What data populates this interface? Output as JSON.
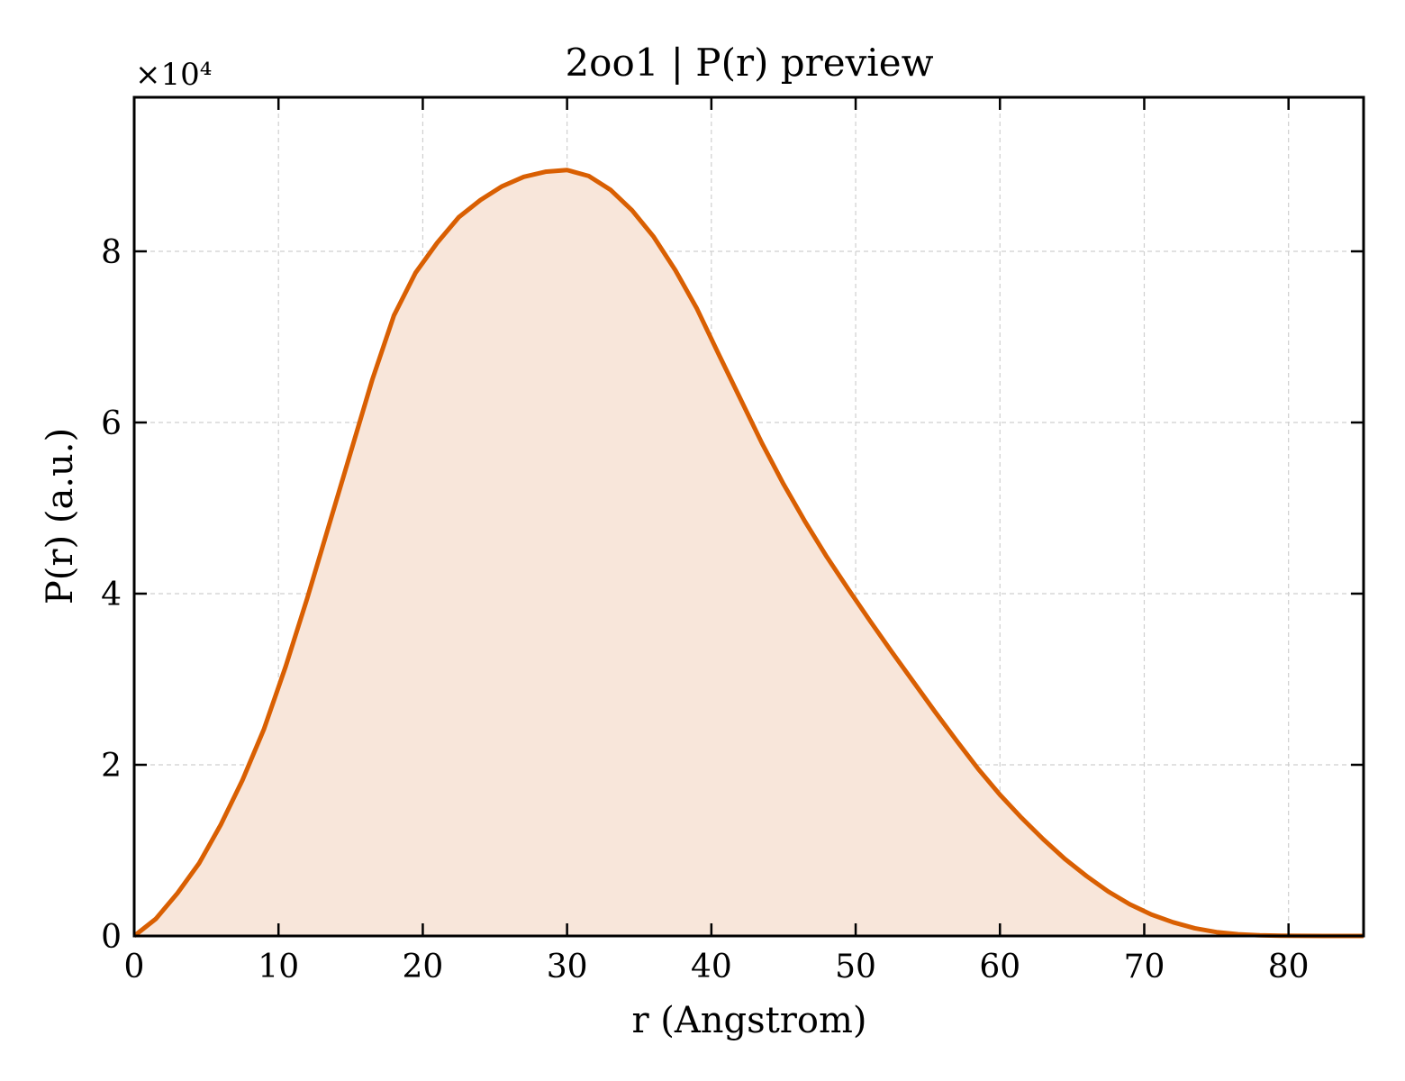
{
  "chart_data": {
    "type": "area",
    "title": "2oo1 | P(r) preview",
    "xlabel": "r (Angstrom)",
    "ylabel": "P(r) (a.u.)",
    "y_multiplier": "×10⁴",
    "xlim": [
      0,
      85.2
    ],
    "ylim": [
      0,
      9.8
    ],
    "xticks": [
      0,
      10,
      20,
      30,
      40,
      50,
      60,
      70,
      80
    ],
    "yticks": [
      0,
      2,
      4,
      6,
      8
    ],
    "grid": true,
    "line_color": "#d95f02",
    "fill_color": "#f8e6da",
    "series": [
      {
        "x": [
          0,
          1.5,
          3,
          4.5,
          6,
          7.5,
          9,
          10.5,
          12,
          13.5,
          15,
          16.5,
          18,
          19.5,
          21,
          22.5,
          24,
          25.5,
          27,
          28.5,
          30,
          31.5,
          33,
          34.5,
          36,
          37.5,
          39,
          40.5,
          42,
          43.5,
          45,
          46.5,
          48,
          49.5,
          51,
          52.5,
          54,
          55.5,
          57,
          58.5,
          60,
          61.5,
          63,
          64.5,
          66,
          67.5,
          69,
          70.5,
          72,
          73.5,
          75,
          76.5,
          78,
          79.5,
          81,
          82.5,
          84,
          85.2
        ],
        "y": [
          0.0,
          0.2,
          0.5,
          0.85,
          1.3,
          1.82,
          2.42,
          3.15,
          3.95,
          4.8,
          5.65,
          6.5,
          7.25,
          7.75,
          8.1,
          8.4,
          8.6,
          8.76,
          8.87,
          8.93,
          8.95,
          8.88,
          8.72,
          8.48,
          8.17,
          7.78,
          7.33,
          6.8,
          6.28,
          5.76,
          5.28,
          4.84,
          4.43,
          4.05,
          3.68,
          3.32,
          2.97,
          2.62,
          2.28,
          1.95,
          1.65,
          1.38,
          1.13,
          0.9,
          0.7,
          0.52,
          0.37,
          0.25,
          0.16,
          0.09,
          0.045,
          0.02,
          0.008,
          0.003,
          0.001,
          0.0,
          0.0,
          0.0
        ]
      }
    ]
  }
}
